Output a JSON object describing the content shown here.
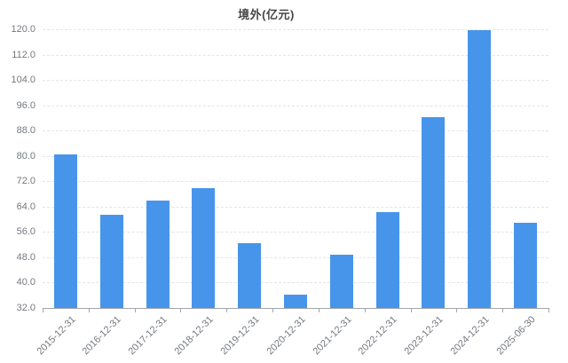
{
  "page": {
    "background": "#ffffff"
  },
  "chart_data": {
    "type": "bar",
    "title": "境外(亿元)",
    "categories": [
      "2015-12-31",
      "2016-12-31",
      "2017-12-31",
      "2018-12-31",
      "2019-12-31",
      "2020-12-31",
      "2021-12-31",
      "2022-12-31",
      "2023-12-31",
      "2024-12-31",
      "2025-06-30"
    ],
    "values": [
      80.4,
      61.4,
      65.9,
      69.7,
      52.4,
      36.3,
      48.7,
      62.2,
      92.2,
      119.6,
      58.8
    ],
    "xlabel": "",
    "ylabel": "",
    "ylim": [
      32,
      120
    ],
    "y_ticks": [
      120,
      112,
      104,
      96,
      88,
      80,
      72,
      64,
      56,
      48,
      40,
      32
    ],
    "y_tick_labels": [
      "120.0",
      "112.0",
      "104.0",
      "96.0",
      "88.0",
      "80.0",
      "72.0",
      "64.0",
      "56.0",
      "48.0",
      "40.0",
      "32.0"
    ],
    "grid": "dashed horizontal gridlines on",
    "legend_position": "none",
    "bar_color": "#4795EB"
  }
}
